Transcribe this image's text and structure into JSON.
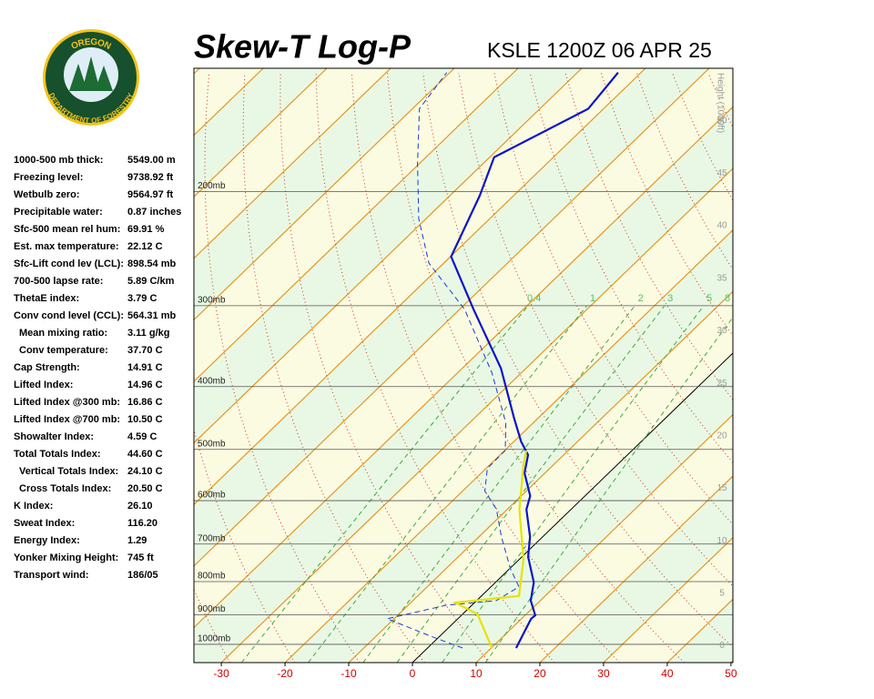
{
  "logo": {
    "top": "OREGON",
    "bottom": "DEPARTMENT OF FORESTRY"
  },
  "indices": [
    {
      "label": "1000-500 mb thick:",
      "value": "5549.00 m"
    },
    {
      "label": "Freezing level:",
      "value": "9738.92 ft"
    },
    {
      "label": "Wetbulb zero:",
      "value": "9564.97 ft"
    },
    {
      "label": "Precipitable water:",
      "value": "0.87 inches"
    },
    {
      "label": "Sfc-500 mean rel hum:",
      "value": "69.91 %"
    },
    {
      "label": "Est. max temperature:",
      "value": "22.12 C"
    },
    {
      "label": "Sfc-Lift cond lev (LCL):",
      "value": "898.54 mb"
    },
    {
      "label": "700-500 lapse rate:",
      "value": "5.89 C/km"
    },
    {
      "label": "ThetaE index:",
      "value": "3.79 C"
    },
    {
      "label": "Conv cond level (CCL):",
      "value": "564.31 mb"
    },
    {
      "label": "Mean mixing ratio:",
      "value": "3.11 g/kg",
      "indent": true
    },
    {
      "label": "Conv temperature:",
      "value": "37.70 C",
      "indent": true
    },
    {
      "label": "Cap Strength:",
      "value": "14.91 C"
    },
    {
      "label": "Lifted Index:",
      "value": "14.96 C"
    },
    {
      "label": "Lifted Index @300 mb:",
      "value": "16.86 C"
    },
    {
      "label": "Lifted Index @700 mb:",
      "value": "10.50 C"
    },
    {
      "label": "Showalter Index:",
      "value": "4.59 C"
    },
    {
      "label": "Total Totals Index:",
      "value": "44.60 C"
    },
    {
      "label": "Vertical Totals Index:",
      "value": "24.10 C",
      "indent": true
    },
    {
      "label": "Cross Totals Index:",
      "value": "20.50 C",
      "indent": true
    },
    {
      "label": "K Index:",
      "value": "26.10"
    },
    {
      "label": "Sweat Index:",
      "value": "116.20"
    },
    {
      "label": "Energy Index:",
      "value": "1.29"
    },
    {
      "label": "Yonker Mixing Height:",
      "value": "745 ft"
    },
    {
      "label": "Transport wind:",
      "value": "186/05"
    }
  ],
  "chart_data": {
    "type": "skewt",
    "title": "Skew-T Log-P",
    "subtitle": "KSLE 1200Z 06 APR 25",
    "xlim": [
      -34.3,
      50.3
    ],
    "xticks": [
      -30,
      -20,
      -10,
      0,
      10,
      20,
      30,
      40,
      50
    ],
    "ylim": [
      1067,
      129
    ],
    "log_y": true,
    "yticks": [
      {
        "value": 200,
        "label": "200mb"
      },
      {
        "value": 300,
        "label": "300mb"
      },
      {
        "value": 400,
        "label": "400mb"
      },
      {
        "value": 500,
        "label": "500mb"
      },
      {
        "value": 600,
        "label": "600mb"
      },
      {
        "value": 700,
        "label": "700mb"
      },
      {
        "value": 800,
        "label": "800mb"
      },
      {
        "value": 900,
        "label": "900mb"
      },
      {
        "value": 1000,
        "label": "1000mb"
      }
    ],
    "y2_label": "Height (1000ft)",
    "y2lim": [
      -1.6,
      55
    ],
    "y2ticks": [
      0,
      5,
      10,
      15,
      20,
      25,
      30,
      35,
      40,
      45,
      50
    ],
    "mixing_ratio_lines": [
      0.4,
      1,
      2,
      3,
      5,
      8
    ],
    "series": [
      {
        "color": "#0a14c8",
        "style": "solid",
        "pressure": [
          1013,
          913,
          902,
          856,
          802,
          733,
          682,
          619,
          590,
          544,
          510,
          486,
          448,
          375,
          304,
          252,
          203,
          177,
          149,
          131
        ],
        "values": [
          13.9,
          11.5,
          11.6,
          8.5,
          6.0,
          1.0,
          -2.0,
          -7.0,
          -8.6,
          -13.2,
          -15.6,
          -18.9,
          -23.7,
          -33.9,
          -47.8,
          -59.9,
          -65.3,
          -69.3,
          -62.4,
          -63.6
        ]
      },
      {
        "color": "#1a3ad8",
        "style": "dashed",
        "pressure": [
          1013,
          974,
          913,
          870,
          856,
          815,
          764,
          682,
          619,
          580,
          535,
          502,
          455,
          381,
          304,
          258,
          220,
          181,
          149,
          131
        ],
        "values": [
          5.5,
          -1.0,
          -11.1,
          -4.0,
          3.1,
          4.4,
          0.1,
          -6.5,
          -11.7,
          -16.5,
          -19.8,
          -19.9,
          -24.3,
          -34.6,
          -49.2,
          -62.3,
          -71.2,
          -80.3,
          -88.9,
          -90.5
        ]
      },
      {
        "color": "#e6e200",
        "style": "solid",
        "pressure": [
          1013,
          899,
          862,
          842,
          740,
          619,
          527,
          502
        ],
        "values": [
          10.1,
          2.4,
          -3.0,
          5.9,
          0.7,
          -8.1,
          -14.8,
          -16.6
        ]
      }
    ]
  }
}
